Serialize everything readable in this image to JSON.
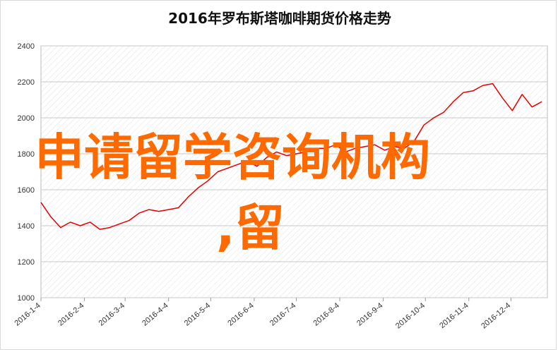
{
  "chart_data": {
    "type": "line",
    "title": "2016年罗布斯塔咖啡期货价格走势",
    "xlabel": "",
    "ylabel": "",
    "ylim": [
      1000,
      2400
    ],
    "yticks": [
      1000,
      1200,
      1400,
      1600,
      1800,
      2000,
      2200,
      2400
    ],
    "xtick_labels": [
      "2016-1-4",
      "2016-2-4",
      "2016-3-4",
      "2016-4-4",
      "2016-5-4",
      "2016-6-4",
      "2016-7-4",
      "2016-8-4",
      "2016-9-4",
      "2016-10-4",
      "2016-11-4",
      "2016-12-4"
    ],
    "grid": "hatched background, horizontal gridlines",
    "line_color": "#e60000",
    "series": [
      {
        "x": [
          "2016-1-4",
          "2016-1-11",
          "2016-1-18",
          "2016-1-25",
          "2016-2-1",
          "2016-2-8",
          "2016-2-15",
          "2016-2-22",
          "2016-2-29",
          "2016-3-7",
          "2016-3-14",
          "2016-3-21",
          "2016-3-28",
          "2016-4-4",
          "2016-4-11",
          "2016-4-18",
          "2016-4-25",
          "2016-5-2",
          "2016-5-9",
          "2016-5-16",
          "2016-5-23",
          "2016-5-30",
          "2016-6-6",
          "2016-6-13",
          "2016-6-20",
          "2016-6-27",
          "2016-7-4",
          "2016-7-11",
          "2016-7-18",
          "2016-7-25",
          "2016-8-1",
          "2016-8-8",
          "2016-8-15",
          "2016-8-22",
          "2016-8-29",
          "2016-9-5",
          "2016-9-12",
          "2016-9-19",
          "2016-9-26",
          "2016-10-3",
          "2016-10-10",
          "2016-10-17",
          "2016-10-24",
          "2016-10-31",
          "2016-11-7",
          "2016-11-14",
          "2016-11-21",
          "2016-11-28",
          "2016-12-5",
          "2016-12-12",
          "2016-12-19",
          "2016-12-26"
        ],
        "values": [
          1530,
          1450,
          1390,
          1420,
          1400,
          1420,
          1380,
          1390,
          1410,
          1430,
          1470,
          1490,
          1480,
          1490,
          1500,
          1560,
          1610,
          1650,
          1700,
          1720,
          1740,
          1760,
          1730,
          1780,
          1810,
          1790,
          1800,
          1810,
          1830,
          1830,
          1850,
          1810,
          1830,
          1840,
          1850,
          1820,
          1840,
          1830,
          1870,
          1960,
          2000,
          2030,
          2090,
          2140,
          2150,
          2180,
          2190,
          2110,
          2040,
          2130,
          2060,
          2090
        ]
      }
    ]
  },
  "overlay": {
    "line1": "申请留学咨询机构",
    "line2": ",留"
  }
}
